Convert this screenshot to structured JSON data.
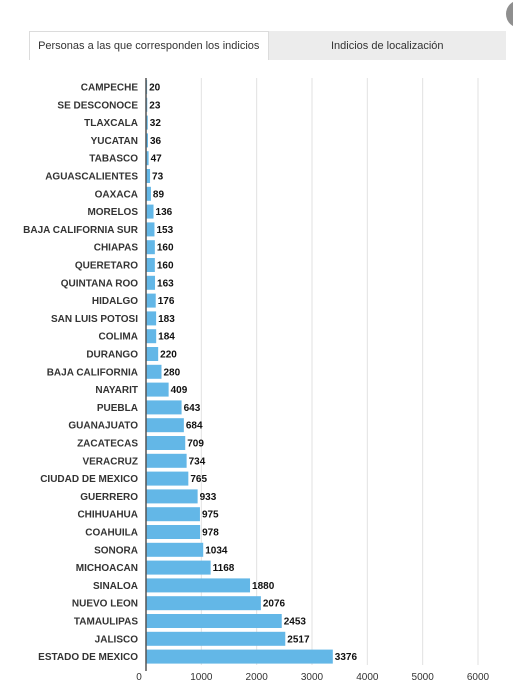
{
  "tabs": [
    {
      "label": "Personas a las que corresponden los indicios",
      "active": true
    },
    {
      "label": "Indicios de localización",
      "active": false
    }
  ],
  "chart_data": {
    "type": "bar",
    "orientation": "horizontal",
    "title": "",
    "xlabel": "",
    "ylabel": "",
    "bar_color": "#63b7e7",
    "xlim": [
      0,
      6000
    ],
    "xticks": [
      0,
      1000,
      2000,
      3000,
      4000,
      5000,
      6000
    ],
    "grid": true,
    "categories": [
      "CAMPECHE",
      "SE DESCONOCE",
      "TLAXCALA",
      "YUCATAN",
      "TABASCO",
      "AGUASCALIENTES",
      "OAXACA",
      "MORELOS",
      "BAJA CALIFORNIA SUR",
      "CHIAPAS",
      "QUERETARO",
      "QUINTANA ROO",
      "HIDALGO",
      "SAN LUIS POTOSI",
      "COLIMA",
      "DURANGO",
      "BAJA CALIFORNIA",
      "NAYARIT",
      "PUEBLA",
      "GUANAJUATO",
      "ZACATECAS",
      "VERACRUZ",
      "CIUDAD DE MEXICO",
      "GUERRERO",
      "CHIHUAHUA",
      "COAHUILA",
      "SONORA",
      "MICHOACAN",
      "SINALOA",
      "NUEVO LEON",
      "TAMAULIPAS",
      "JALISCO",
      "ESTADO DE MEXICO"
    ],
    "values": [
      20,
      23,
      32,
      36,
      47,
      73,
      89,
      136,
      153,
      160,
      160,
      163,
      176,
      183,
      184,
      220,
      280,
      409,
      643,
      684,
      709,
      734,
      765,
      933,
      975,
      978,
      1034,
      1168,
      1880,
      2076,
      2453,
      2517,
      3376
    ]
  }
}
